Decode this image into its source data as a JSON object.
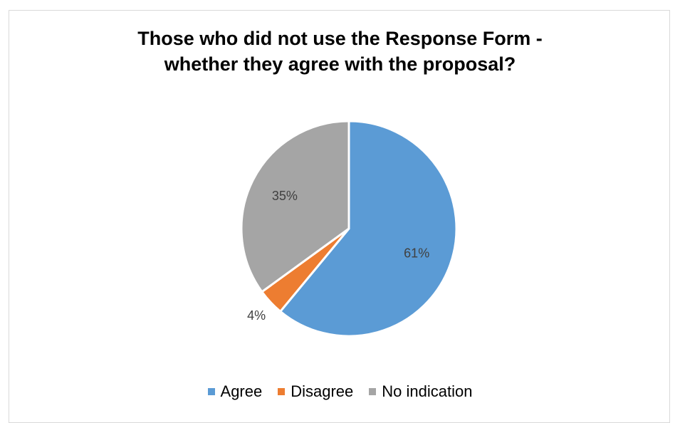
{
  "chart_data": {
    "type": "pie",
    "title_lines": [
      "Those who did not use the Response Form -",
      "whether they agree with the proposal?"
    ],
    "categories": [
      "Agree",
      "Disagree",
      "No indication"
    ],
    "values": [
      61,
      4,
      35
    ],
    "data_labels": [
      "61%",
      "4%",
      "35%"
    ],
    "colors": [
      "#5b9bd5",
      "#ed7d31",
      "#a5a5a5"
    ],
    "legend_position": "bottom",
    "start_angle_deg": 0,
    "direction": "clockwise"
  }
}
